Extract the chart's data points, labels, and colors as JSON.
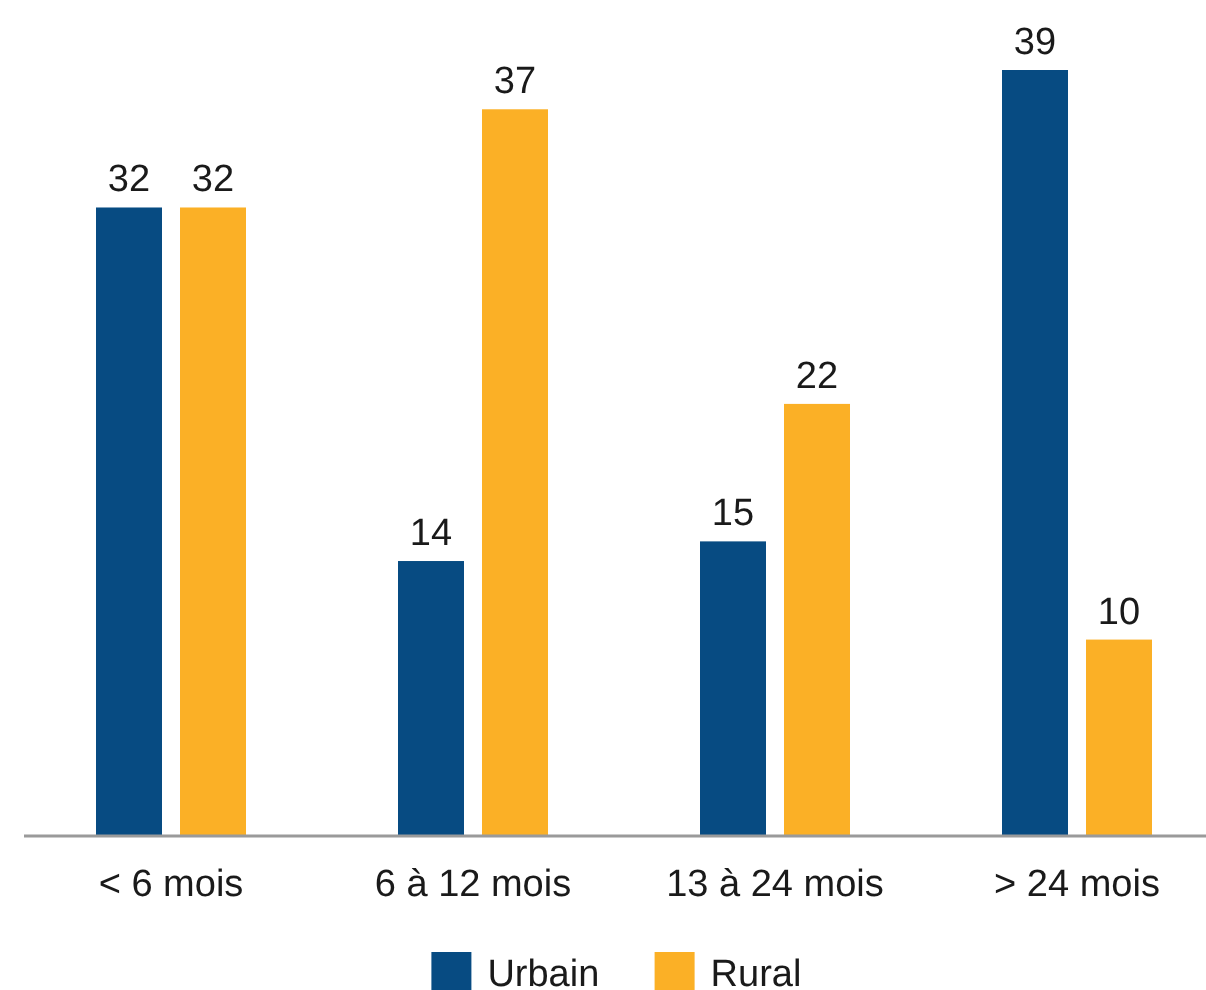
{
  "chart_data": {
    "type": "bar",
    "categories": [
      "< 6 mois",
      "6 à 12 mois",
      "13 à 24 mois",
      "> 24 mois"
    ],
    "series": [
      {
        "name": "Urbain",
        "color": "#074b82",
        "values": [
          32,
          14,
          15,
          39
        ]
      },
      {
        "name": "Rural",
        "color": "#fbb026",
        "values": [
          32,
          37,
          22,
          10
        ]
      }
    ],
    "data_labels": true,
    "legend": "bottom"
  }
}
